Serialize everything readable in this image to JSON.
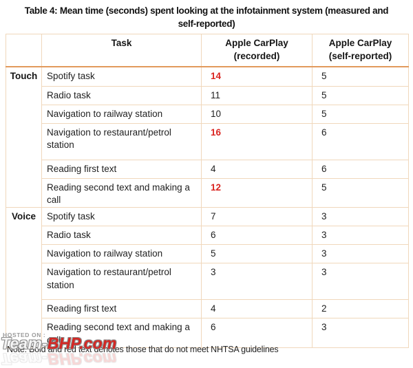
{
  "chart_data": {
    "type": "table",
    "title": "Table 4: Mean time (seconds) spent looking at the infotainment system (measured and self-reported)",
    "title_lines": [
      "Table 4: Mean time (seconds) spent looking at the infotainment system (measured and",
      "self-reported)"
    ],
    "columns": [
      "",
      "Task",
      "Apple CarPlay (recorded)",
      "Apple CarPlay (self-reported)"
    ],
    "header_lines": {
      "task": "Task",
      "recorded": [
        "Apple CarPlay",
        "(recorded)"
      ],
      "self_reported": [
        "Apple CarPlay",
        "(self-reported)"
      ]
    },
    "sections": [
      {
        "category": "Touch",
        "rows": [
          {
            "task": "Spotify task",
            "recorded": "14",
            "recorded_flagged": true,
            "self_reported": "5"
          },
          {
            "task": "Radio task",
            "recorded": "11",
            "recorded_flagged": false,
            "self_reported": "5"
          },
          {
            "task": "Navigation to railway station",
            "recorded": "10",
            "recorded_flagged": false,
            "self_reported": "5"
          },
          {
            "task": "Navigation to restaurant/petrol station",
            "recorded": "16",
            "recorded_flagged": true,
            "self_reported": "6"
          },
          {
            "task": "Reading first text",
            "recorded": "4",
            "recorded_flagged": false,
            "self_reported": "6"
          },
          {
            "task": "Reading second text and making a call",
            "recorded": "12",
            "recorded_flagged": true,
            "self_reported": "5"
          }
        ]
      },
      {
        "category": "Voice",
        "rows": [
          {
            "task": "Spotify task",
            "recorded": "7",
            "recorded_flagged": false,
            "self_reported": "3"
          },
          {
            "task": "Radio task",
            "recorded": "6",
            "recorded_flagged": false,
            "self_reported": "3"
          },
          {
            "task": "Navigation to railway station",
            "recorded": "5",
            "recorded_flagged": false,
            "self_reported": "3"
          },
          {
            "task": "Navigation to restaurant/petrol station",
            "recorded": "3",
            "recorded_flagged": false,
            "self_reported": "3"
          },
          {
            "task": "Reading first text",
            "recorded": "4",
            "recorded_flagged": false,
            "self_reported": "2"
          },
          {
            "task": "Reading second text and making a call",
            "recorded": "6",
            "recorded_flagged": false,
            "self_reported": "3"
          }
        ]
      }
    ],
    "note": "Note: Bold and red text denotes those that do not meet NHTSA guidelines",
    "highlight_rule": "Bold and red values do not meet NHTSA guidelines"
  },
  "watermark": {
    "hosted_on": "HOSTED ON :",
    "logo_team": "Team-",
    "logo_bhp": "BHP.com"
  },
  "colors": {
    "flag_red": "#da2521",
    "border_light": "#f0d7bb",
    "border_accent": "#e2995c",
    "text": "#1f1f1f"
  }
}
